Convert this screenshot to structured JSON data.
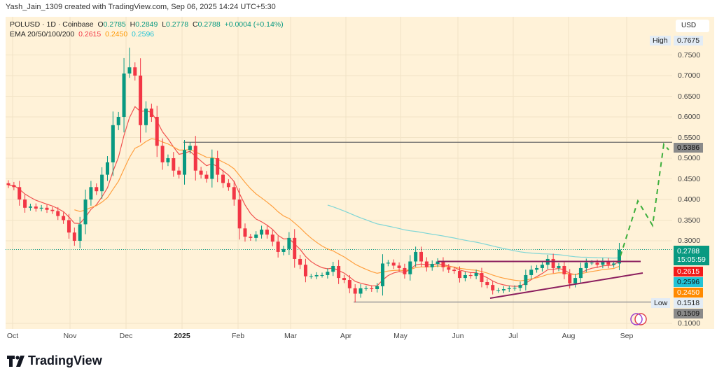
{
  "credit": "Yash_Jain_1309 created with TradingView.com, Sep 06, 2025 14:24 UTC+5:30",
  "legend": {
    "symbol": "POLUSD · 1D · Coinbase",
    "o_label": "O",
    "o": "0.2785",
    "h_label": "H",
    "h": "0.2849",
    "l_label": "L",
    "l": "0.2778",
    "c_label": "C",
    "c": "0.2788",
    "change": "+0.0004 (+0.14%)",
    "ema_label": "EMA 20/50/100/200",
    "ema20": "0.2615",
    "ema50": "0.2450",
    "ema200": "0.2596"
  },
  "currency": "USD",
  "colors": {
    "up": "#089981",
    "down": "#f23645",
    "ema20": "#f0524f",
    "ema50": "#ffa040",
    "ema200": "#7fd6d6",
    "trendline": "#8b1e5e",
    "projection": "#3cae3c",
    "level": "#6b6b6b",
    "background": "#fff2d8"
  },
  "price_axis": {
    "ticks": [
      "0.7500",
      "0.7000",
      "0.6500",
      "0.6000",
      "0.5500",
      "0.5000",
      "0.4500",
      "0.4000",
      "0.3500",
      "0.3000",
      "0.1000"
    ]
  },
  "time_axis": {
    "ticks": [
      "Oct",
      "Nov",
      "Dec",
      "2025",
      "Feb",
      "Mar",
      "Apr",
      "May",
      "Jun",
      "Jul",
      "Aug",
      "Sep"
    ]
  },
  "labels": {
    "high_tag": "High",
    "high": "0.7675",
    "resistance": "0.5386",
    "last": "0.2788",
    "countdown": "15:05:59",
    "ema20": "0.2615",
    "ema200": "0.2596",
    "ema50": "0.2450",
    "low_tag": "Low",
    "low": "0.1518",
    "low_close": "0.1509"
  },
  "chart_data": {
    "type": "candlestick",
    "interval_days": 3,
    "start": "2024-10-01",
    "end": "2025-09-05",
    "high": 0.7675,
    "low": 0.1509,
    "closes": [
      0.435,
      0.43,
      0.4,
      0.38,
      0.383,
      0.378,
      0.38,
      0.375,
      0.372,
      0.36,
      0.35,
      0.32,
      0.3,
      0.34,
      0.4,
      0.43,
      0.42,
      0.46,
      0.49,
      0.58,
      0.6,
      0.705,
      0.72,
      0.7,
      0.58,
      0.62,
      0.6,
      0.53,
      0.49,
      0.5,
      0.47,
      0.46,
      0.52,
      0.53,
      0.47,
      0.46,
      0.45,
      0.5,
      0.46,
      0.44,
      0.43,
      0.4,
      0.33,
      0.31,
      0.307,
      0.315,
      0.327,
      0.315,
      0.298,
      0.273,
      0.28,
      0.307,
      0.256,
      0.242,
      0.214,
      0.214,
      0.217,
      0.217,
      0.225,
      0.239,
      0.21,
      0.205,
      0.185,
      0.172,
      0.185,
      0.185,
      0.183,
      0.19,
      0.245,
      0.247,
      0.24,
      0.234,
      0.219,
      0.25,
      0.273,
      0.25,
      0.236,
      0.244,
      0.25,
      0.236,
      0.23,
      0.227,
      0.21,
      0.217,
      0.215,
      0.222,
      0.2,
      0.193,
      0.18,
      0.18,
      0.183,
      0.185,
      0.186,
      0.193,
      0.217,
      0.23,
      0.234,
      0.242,
      0.256,
      0.234,
      0.239,
      0.219,
      0.197,
      0.21,
      0.234,
      0.247,
      0.247,
      0.242,
      0.25,
      0.242,
      0.245,
      0.2788
    ],
    "ylim": [
      0.1,
      0.8
    ],
    "horizontal_levels": [
      0.5386,
      0.1518,
      0.25
    ]
  },
  "brand": "TradingView"
}
